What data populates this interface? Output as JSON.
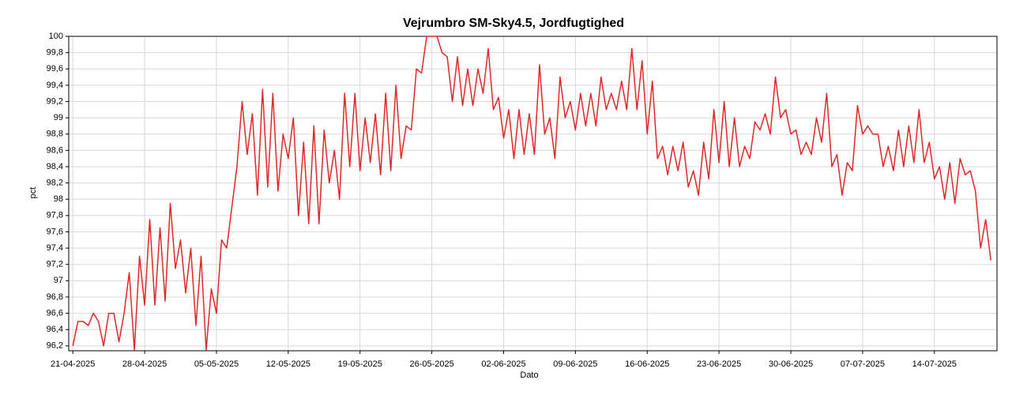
{
  "chart_data": {
    "type": "line",
    "title": "Vejrumbro SM-Sky4.5, Jordfugtighed",
    "x_label": "Dato",
    "y_label": "pct",
    "x": [
      0,
      0.5,
      1,
      1.5,
      2,
      2.5,
      3,
      3.5,
      4,
      4.5,
      5,
      5.5,
      6,
      6.5,
      7,
      7.5,
      8,
      8.5,
      9,
      9.5,
      10,
      10.5,
      11,
      11.5,
      12,
      12.5,
      13,
      13.5,
      14,
      14.5,
      15,
      15.5,
      16,
      16.5,
      17,
      17.5,
      18,
      18.5,
      19,
      19.5,
      20,
      20.5,
      21,
      21.5,
      22,
      22.5,
      23,
      23.5,
      24,
      24.5,
      25,
      25.5,
      26,
      26.5,
      27,
      27.5,
      28,
      28.5,
      29,
      29.5,
      30,
      30.5,
      31,
      31.5,
      32,
      32.5,
      33,
      33.5,
      34,
      34.5,
      35,
      35.5,
      36,
      36.5,
      37,
      37.5,
      38,
      38.5,
      39,
      39.5,
      40,
      40.5,
      41,
      41.5,
      42,
      42.5,
      43,
      43.5,
      44,
      44.5,
      45,
      45.5,
      46,
      46.5,
      47,
      47.5,
      48,
      48.5,
      49,
      49.5,
      50,
      50.5,
      51,
      51.5,
      52,
      52.5,
      53,
      53.5,
      54,
      54.5,
      55,
      55.5,
      56,
      56.5,
      57,
      57.5,
      58,
      58.5,
      59,
      59.5,
      60,
      60.5,
      61,
      61.5,
      62,
      62.5,
      63,
      63.5,
      64,
      64.5,
      65,
      65.5,
      66,
      66.5,
      67,
      67.5,
      68,
      68.5,
      69,
      69.5,
      70,
      70.5,
      71,
      71.5,
      72,
      72.5,
      73,
      73.5,
      74,
      74.5,
      75,
      75.5,
      76,
      76.5,
      77,
      77.5,
      78,
      78.5,
      79,
      79.5,
      80,
      80.5,
      81,
      81.5,
      82,
      82.5,
      83,
      83.5,
      84,
      84.5,
      85,
      85.5,
      86,
      86.5,
      87,
      87.5,
      88,
      88.5,
      89,
      89.5
    ],
    "values": [
      96.2,
      96.5,
      96.5,
      96.45,
      96.6,
      96.5,
      96.2,
      96.6,
      96.6,
      96.25,
      96.6,
      97.1,
      96.15,
      97.3,
      96.7,
      97.75,
      96.7,
      97.65,
      96.75,
      97.95,
      97.15,
      97.5,
      96.85,
      97.4,
      96.45,
      97.3,
      96.15,
      96.9,
      96.6,
      97.5,
      97.4,
      97.9,
      98.4,
      99.2,
      98.55,
      99.05,
      98.05,
      99.35,
      98.15,
      99.3,
      98.1,
      98.8,
      98.5,
      99.0,
      97.8,
      98.7,
      97.7,
      98.9,
      97.7,
      98.85,
      98.2,
      98.6,
      98.0,
      99.3,
      98.4,
      99.3,
      98.35,
      99.0,
      98.45,
      99.05,
      98.3,
      99.3,
      98.35,
      99.4,
      98.5,
      98.9,
      98.85,
      99.6,
      99.55,
      100,
      100,
      100,
      99.8,
      99.75,
      99.2,
      99.75,
      99.15,
      99.6,
      99.15,
      99.6,
      99.3,
      99.85,
      99.1,
      99.25,
      98.75,
      99.1,
      98.5,
      99.1,
      98.55,
      99.05,
      98.55,
      99.65,
      98.8,
      99.0,
      98.5,
      99.5,
      99.0,
      99.2,
      98.85,
      99.3,
      98.9,
      99.3,
      98.9,
      99.5,
      99.1,
      99.3,
      99.1,
      99.45,
      99.1,
      99.85,
      99.1,
      99.7,
      98.8,
      99.45,
      98.5,
      98.65,
      98.3,
      98.65,
      98.35,
      98.7,
      98.15,
      98.35,
      98.05,
      98.7,
      98.25,
      99.1,
      98.45,
      99.2,
      98.4,
      99.0,
      98.4,
      98.65,
      98.5,
      98.95,
      98.85,
      99.05,
      98.8,
      99.5,
      99.0,
      99.1,
      98.8,
      98.85,
      98.55,
      98.7,
      98.55,
      99.0,
      98.7,
      99.3,
      98.4,
      98.55,
      98.05,
      98.45,
      98.35,
      99.15,
      98.8,
      98.9,
      98.8,
      98.8,
      98.4,
      98.65,
      98.35,
      98.85,
      98.4,
      98.9,
      98.45,
      99.1,
      98.45,
      98.7,
      98.25,
      98.4,
      98.0,
      98.45,
      97.95,
      98.5,
      98.3,
      98.35,
      98.1,
      97.4,
      97.75,
      97.25
    ],
    "color": "#e02828",
    "xlim": [
      -0.4,
      90.1
    ],
    "xticks": [
      {
        "value": 0,
        "label": "21-04-2025"
      },
      {
        "value": 7,
        "label": "28-04-2025"
      },
      {
        "value": 14,
        "label": "05-05-2025"
      },
      {
        "value": 21,
        "label": "12-05-2025"
      },
      {
        "value": 28,
        "label": "19-05-2025"
      },
      {
        "value": 35,
        "label": "26-05-2025"
      },
      {
        "value": 42,
        "label": "02-06-2025"
      },
      {
        "value": 49,
        "label": "09-06-2025"
      },
      {
        "value": 56,
        "label": "16-06-2025"
      },
      {
        "value": 63,
        "label": "23-06-2025"
      },
      {
        "value": 70,
        "label": "30-06-2025"
      },
      {
        "value": 77,
        "label": "07-07-2025"
      },
      {
        "value": 84,
        "label": "14-07-2025"
      }
    ],
    "ylim": [
      96.14,
      100
    ],
    "yticks": [
      {
        "value": 96.2,
        "label": "96,2"
      },
      {
        "value": 96.4,
        "label": "96,4"
      },
      {
        "value": 96.6,
        "label": "96,6"
      },
      {
        "value": 96.8,
        "label": "96,8"
      },
      97,
      {
        "value": 97.2,
        "label": "97,2"
      },
      {
        "value": 97.4,
        "label": "97,4"
      },
      {
        "value": 97.6,
        "label": "97,6"
      },
      {
        "value": 97.8,
        "label": "97,8"
      },
      98,
      {
        "value": 98.2,
        "label": "98,2"
      },
      {
        "value": 98.4,
        "label": "98,4"
      },
      {
        "value": 98.6,
        "label": "98,6"
      },
      {
        "value": 98.8,
        "label": "98,8"
      },
      99,
      {
        "value": 99.2,
        "label": "99,2"
      },
      {
        "value": 99.4,
        "label": "99,4"
      },
      {
        "value": 99.6,
        "label": "99,6"
      },
      {
        "value": 99.8,
        "label": "99,8"
      },
      100
    ],
    "grid": true
  }
}
